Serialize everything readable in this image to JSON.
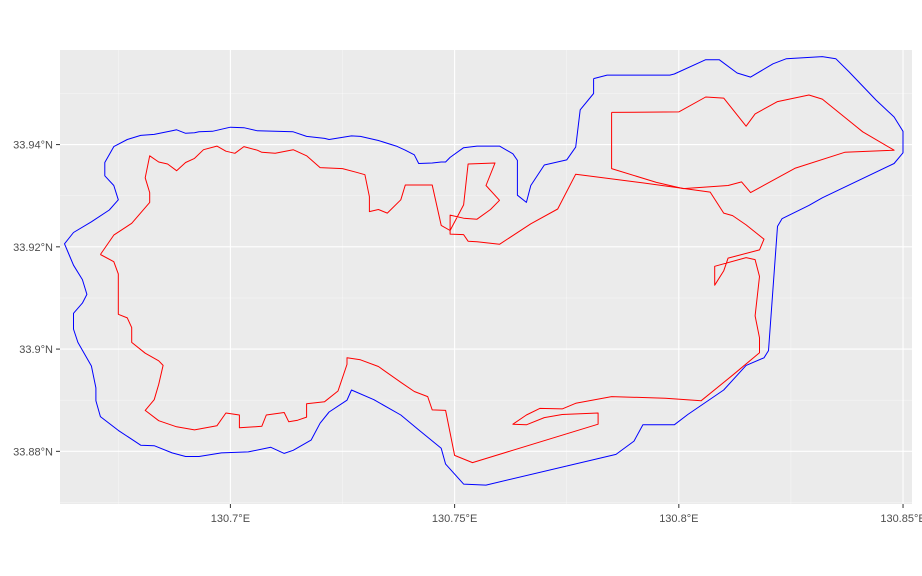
{
  "chart_data": {
    "type": "map",
    "crs": "geographic (lon/lat)",
    "xlim": [
      130.662,
      130.852
    ],
    "ylim": [
      33.8697,
      33.9585
    ],
    "x_ticks": [
      {
        "value": 130.7,
        "label": "130.7°E"
      },
      {
        "value": 130.75,
        "label": "130.75°E"
      },
      {
        "value": 130.8,
        "label": "130.8°E"
      },
      {
        "value": 130.85,
        "label": "130.85°E"
      }
    ],
    "y_ticks": [
      {
        "value": 33.88,
        "label": "33.88°N"
      },
      {
        "value": 33.9,
        "label": "33.9°N"
      },
      {
        "value": 33.92,
        "label": "33.92°N"
      },
      {
        "value": 33.94,
        "label": "33.94°N"
      }
    ],
    "panel_background": "#ebebeb",
    "grid": true,
    "series": [
      {
        "color": "#0000ff",
        "points": [
          [
            130.781,
            33.9529
          ],
          [
            130.784,
            33.9536
          ],
          [
            130.798,
            33.9536
          ],
          [
            130.799,
            33.9538
          ],
          [
            130.806,
            33.9566
          ],
          [
            130.809,
            33.9566
          ],
          [
            130.813,
            33.954
          ],
          [
            130.816,
            33.9532
          ],
          [
            130.821,
            33.9558
          ],
          [
            130.824,
            33.9568
          ],
          [
            130.832,
            33.9572
          ],
          [
            130.835,
            33.9568
          ],
          [
            130.838,
            33.9542
          ],
          [
            130.844,
            33.9487
          ],
          [
            130.848,
            33.9454
          ],
          [
            130.85,
            33.9426
          ],
          [
            130.85,
            33.9384
          ],
          [
            130.848,
            33.9363
          ],
          [
            130.832,
            33.9296
          ],
          [
            130.829,
            33.9281
          ],
          [
            130.823,
            33.9255
          ],
          [
            130.822,
            33.924
          ],
          [
            130.82,
            33.8997
          ],
          [
            130.819,
            33.8983
          ],
          [
            130.815,
            33.8968
          ],
          [
            130.81,
            33.892
          ],
          [
            130.802,
            33.8872
          ],
          [
            130.799,
            33.8852
          ],
          [
            130.792,
            33.8852
          ],
          [
            130.79,
            33.882
          ],
          [
            130.786,
            33.8794
          ],
          [
            130.757,
            33.8734
          ],
          [
            130.752,
            33.8736
          ],
          [
            130.748,
            33.8775
          ],
          [
            130.747,
            33.8806
          ],
          [
            130.742,
            33.8842
          ],
          [
            130.738,
            33.8871
          ],
          [
            130.732,
            33.8901
          ],
          [
            130.727,
            33.892
          ],
          [
            130.726,
            33.89
          ],
          [
            130.722,
            33.8877
          ],
          [
            130.72,
            33.8855
          ],
          [
            130.718,
            33.8822
          ],
          [
            130.714,
            33.8802
          ],
          [
            130.712,
            33.8796
          ],
          [
            130.709,
            33.8808
          ],
          [
            130.704,
            33.8799
          ],
          [
            130.698,
            33.8797
          ],
          [
            130.693,
            33.879
          ],
          [
            130.69,
            33.879
          ],
          [
            130.687,
            33.8797
          ],
          [
            130.683,
            33.8811
          ],
          [
            130.68,
            33.8812
          ],
          [
            130.675,
            33.8841
          ],
          [
            130.671,
            33.8868
          ],
          [
            130.67,
            33.8899
          ],
          [
            130.67,
            33.8924
          ],
          [
            130.669,
            33.8967
          ],
          [
            130.666,
            33.9013
          ],
          [
            130.665,
            33.9039
          ],
          [
            130.665,
            33.907
          ],
          [
            130.667,
            33.909
          ],
          [
            130.668,
            33.9107
          ],
          [
            130.667,
            33.9136
          ],
          [
            130.665,
            33.9164
          ],
          [
            130.664,
            33.9185
          ],
          [
            130.663,
            33.9206
          ],
          [
            130.665,
            33.9228
          ],
          [
            130.669,
            33.9249
          ],
          [
            130.673,
            33.9272
          ],
          [
            130.675,
            33.9292
          ],
          [
            130.674,
            33.932
          ],
          [
            130.672,
            33.9339
          ],
          [
            130.672,
            33.9365
          ],
          [
            130.674,
            33.9396
          ],
          [
            130.677,
            33.941
          ],
          [
            130.68,
            33.9418
          ],
          [
            130.683,
            33.942
          ],
          [
            130.687,
            33.9427
          ],
          [
            130.688,
            33.9429
          ],
          [
            130.69,
            33.9422
          ],
          [
            130.692,
            33.9423
          ],
          [
            130.693,
            33.9425
          ],
          [
            130.696,
            33.9426
          ],
          [
            130.7,
            33.9434
          ],
          [
            130.703,
            33.9433
          ],
          [
            130.706,
            33.9427
          ],
          [
            130.71,
            33.9426
          ],
          [
            130.714,
            33.9425
          ],
          [
            130.717,
            33.9416
          ],
          [
            130.721,
            33.9412
          ],
          [
            130.722,
            33.941
          ],
          [
            130.727,
            33.9417
          ],
          [
            130.729,
            33.9416
          ],
          [
            130.733,
            33.9408
          ],
          [
            130.737,
            33.9397
          ],
          [
            130.739,
            33.9389
          ],
          [
            130.741,
            33.938
          ],
          [
            130.742,
            33.9363
          ],
          [
            130.745,
            33.9364
          ],
          [
            130.747,
            33.9366
          ],
          [
            130.748,
            33.9366
          ],
          [
            130.749,
            33.9375
          ],
          [
            130.752,
            33.9394
          ],
          [
            130.755,
            33.9397
          ],
          [
            130.76,
            33.9397
          ],
          [
            130.763,
            33.9382
          ],
          [
            130.764,
            33.9369
          ],
          [
            130.764,
            33.9301
          ],
          [
            130.766,
            33.9287
          ],
          [
            130.767,
            33.932
          ],
          [
            130.77,
            33.936
          ],
          [
            130.775,
            33.937
          ],
          [
            130.777,
            33.9395
          ],
          [
            130.778,
            33.9468
          ],
          [
            130.781,
            33.95
          ],
          [
            130.781,
            33.9529
          ]
        ]
      },
      {
        "color": "#ff0000",
        "points": [
          [
            130.785,
            33.9463
          ],
          [
            130.785,
            33.9353
          ],
          [
            130.795,
            33.9326
          ],
          [
            130.801,
            33.9314
          ],
          [
            130.811,
            33.932
          ],
          [
            130.814,
            33.9327
          ],
          [
            130.816,
            33.9306
          ],
          [
            130.826,
            33.9354
          ],
          [
            130.837,
            33.9385
          ],
          [
            130.848,
            33.9389
          ],
          [
            130.841,
            33.9425
          ],
          [
            130.832,
            33.9489
          ],
          [
            130.829,
            33.9497
          ],
          [
            130.822,
            33.9484
          ],
          [
            130.817,
            33.946
          ],
          [
            130.815,
            33.9436
          ],
          [
            130.81,
            33.9491
          ],
          [
            130.806,
            33.9493
          ],
          [
            130.8,
            33.9464
          ],
          [
            130.785,
            33.9463
          ]
        ]
      },
      {
        "color": "#ff0000",
        "points": [
          [
            130.671,
            33.9185
          ],
          [
            130.674,
            33.9171
          ],
          [
            130.675,
            33.9147
          ],
          [
            130.675,
            33.9114
          ],
          [
            130.675,
            33.9068
          ],
          [
            130.677,
            33.9061
          ],
          [
            130.678,
            33.9042
          ],
          [
            130.678,
            33.9013
          ],
          [
            130.681,
            33.8992
          ],
          [
            130.684,
            33.8977
          ],
          [
            130.685,
            33.8968
          ],
          [
            130.684,
            33.8931
          ],
          [
            130.683,
            33.8901
          ],
          [
            130.681,
            33.888
          ],
          [
            130.684,
            33.886
          ],
          [
            130.688,
            33.8848
          ],
          [
            130.692,
            33.8842
          ],
          [
            130.697,
            33.885
          ],
          [
            130.699,
            33.8875
          ],
          [
            130.702,
            33.8871
          ],
          [
            130.702,
            33.8846
          ],
          [
            130.707,
            33.8849
          ],
          [
            130.708,
            33.8871
          ],
          [
            130.712,
            33.8876
          ],
          [
            130.713,
            33.8858
          ],
          [
            130.715,
            33.8861
          ],
          [
            130.717,
            33.8867
          ],
          [
            130.717,
            33.8893
          ],
          [
            130.721,
            33.8897
          ],
          [
            130.724,
            33.8918
          ],
          [
            130.726,
            33.897
          ],
          [
            130.726,
            33.8983
          ],
          [
            130.729,
            33.8979
          ],
          [
            130.733,
            33.8966
          ],
          [
            130.738,
            33.8935
          ],
          [
            130.741,
            33.8917
          ],
          [
            130.744,
            33.8907
          ],
          [
            130.745,
            33.8881
          ],
          [
            130.748,
            33.888
          ],
          [
            130.75,
            33.8792
          ],
          [
            130.754,
            33.8778
          ],
          [
            130.782,
            33.8853
          ],
          [
            130.782,
            33.8875
          ],
          [
            130.774,
            33.8872
          ],
          [
            130.77,
            33.8866
          ],
          [
            130.766,
            33.8852
          ],
          [
            130.763,
            33.8853
          ],
          [
            130.766,
            33.8871
          ],
          [
            130.769,
            33.8884
          ],
          [
            130.774,
            33.8883
          ],
          [
            130.777,
            33.8894
          ],
          [
            130.785,
            33.8907
          ],
          [
            130.797,
            33.8904
          ],
          [
            130.805,
            33.8899
          ],
          [
            130.812,
            33.8949
          ],
          [
            130.818,
            33.8993
          ],
          [
            130.818,
            33.9022
          ],
          [
            130.817,
            33.9065
          ],
          [
            130.818,
            33.9142
          ],
          [
            130.817,
            33.9175
          ],
          [
            130.815,
            33.9179
          ],
          [
            130.808,
            33.9162
          ],
          [
            130.808,
            33.9125
          ],
          [
            130.81,
            33.9153
          ],
          [
            130.811,
            33.9178
          ],
          [
            130.818,
            33.9194
          ],
          [
            130.819,
            33.9215
          ],
          [
            130.815,
            33.9243
          ],
          [
            130.812,
            33.9261
          ],
          [
            130.81,
            33.9266
          ],
          [
            130.807,
            33.9307
          ],
          [
            130.792,
            33.9325
          ],
          [
            130.777,
            33.9342
          ],
          [
            130.773,
            33.9274
          ],
          [
            130.767,
            33.9245
          ],
          [
            130.76,
            33.9205
          ],
          [
            130.757,
            33.9208
          ],
          [
            130.755,
            33.921
          ],
          [
            130.753,
            33.9211
          ],
          [
            130.752,
            33.9224
          ],
          [
            130.749,
            33.9225
          ],
          [
            130.749,
            33.9262
          ],
          [
            130.752,
            33.9256
          ],
          [
            130.755,
            33.9254
          ],
          [
            130.758,
            33.9273
          ],
          [
            130.76,
            33.9291
          ],
          [
            130.757,
            33.932
          ],
          [
            130.759,
            33.9364
          ],
          [
            130.753,
            33.9362
          ],
          [
            130.752,
            33.9282
          ],
          [
            130.749,
            33.9232
          ],
          [
            130.747,
            33.9242
          ],
          [
            130.745,
            33.9321
          ],
          [
            130.739,
            33.9321
          ],
          [
            130.738,
            33.9292
          ],
          [
            130.735,
            33.9266
          ],
          [
            130.733,
            33.9273
          ],
          [
            130.731,
            33.9269
          ],
          [
            130.731,
            33.9298
          ],
          [
            130.73,
            33.9341
          ],
          [
            130.728,
            33.9346
          ],
          [
            130.725,
            33.9353
          ],
          [
            130.72,
            33.9355
          ],
          [
            130.717,
            33.9378
          ],
          [
            130.714,
            33.939
          ],
          [
            130.71,
            33.9383
          ],
          [
            130.707,
            33.9385
          ],
          [
            130.706,
            33.9389
          ],
          [
            130.703,
            33.9396
          ],
          [
            130.701,
            33.9383
          ],
          [
            130.699,
            33.9387
          ],
          [
            130.697,
            33.9397
          ],
          [
            130.694,
            33.939
          ],
          [
            130.692,
            33.9373
          ],
          [
            130.69,
            33.9365
          ],
          [
            130.688,
            33.9349
          ],
          [
            130.686,
            33.9362
          ],
          [
            130.684,
            33.9366
          ],
          [
            130.682,
            33.9378
          ],
          [
            130.681,
            33.9335
          ],
          [
            130.682,
            33.9306
          ],
          [
            130.682,
            33.9287
          ],
          [
            130.678,
            33.9246
          ],
          [
            130.674,
            33.9223
          ],
          [
            130.671,
            33.9185
          ]
        ]
      }
    ]
  }
}
